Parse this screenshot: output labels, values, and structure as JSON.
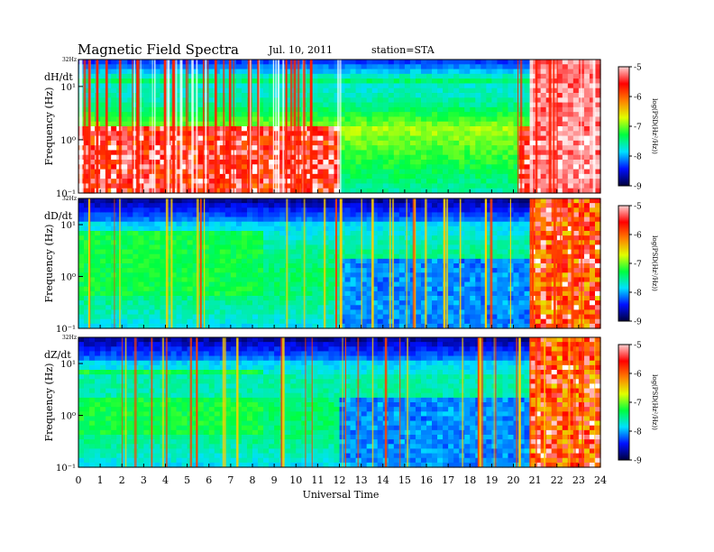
{
  "header": {
    "title": "Magnetic Field Spectra",
    "date": "Jul. 10, 2011",
    "station": "station=STA"
  },
  "chart_data": [
    {
      "type": "heatmap",
      "panel_label": "dH/dt",
      "ylabel": "Frequency (Hz)",
      "top_label": "32Hz",
      "y_ticks": [
        "10¹",
        "10⁰",
        "10⁻¹"
      ],
      "xlim": [
        0,
        24
      ],
      "colorbar": {
        "label": "log(PSD(Hz²/Hz))",
        "ticks": [
          "-5",
          "-6",
          "-7",
          "-8",
          "-9"
        ],
        "range": [
          -9,
          -5
        ]
      },
      "colors": [
        "#00003c",
        "#0010ff",
        "#00e0ff",
        "#00ff40",
        "#e0ff00",
        "#ff8000",
        "#ff0000",
        "#ffffff"
      ]
    },
    {
      "type": "heatmap",
      "panel_label": "dD/dt",
      "ylabel": "Frequency (Hz)",
      "top_label": "32Hz",
      "y_ticks": [
        "10¹",
        "10⁰",
        "10⁻¹"
      ],
      "xlim": [
        0,
        24
      ],
      "colorbar": {
        "label": "log(PSD(Hz²/Hz))",
        "ticks": [
          "-5",
          "-6",
          "-7",
          "-8",
          "-9"
        ],
        "range": [
          -9,
          -5
        ]
      },
      "colors": [
        "#00003c",
        "#0010ff",
        "#00e0ff",
        "#00ff40",
        "#e0ff00",
        "#ff8000",
        "#ff0000",
        "#ffffff"
      ]
    },
    {
      "type": "heatmap",
      "panel_label": "dZ/dt",
      "ylabel": "Frequency (Hz)",
      "top_label": "32Hz",
      "y_ticks": [
        "10¹",
        "10⁰",
        "10⁻¹"
      ],
      "xlim": [
        0,
        24
      ],
      "xlabel": "Universal Time",
      "x_ticks": [
        "0",
        "1",
        "2",
        "3",
        "4",
        "5",
        "6",
        "7",
        "8",
        "9",
        "10",
        "11",
        "12",
        "13",
        "14",
        "15",
        "16",
        "17",
        "18",
        "19",
        "20",
        "21",
        "22",
        "23",
        "24"
      ],
      "colorbar": {
        "label": "log(PSD(Hz²/Hz))",
        "ticks": [
          "-5",
          "-6",
          "-7",
          "-8",
          "-9"
        ],
        "range": [
          -9,
          -5
        ]
      },
      "colors": [
        "#00003c",
        "#0010ff",
        "#00e0ff",
        "#00ff40",
        "#e0ff00",
        "#ff8000",
        "#ff0000",
        "#ffffff"
      ]
    }
  ]
}
